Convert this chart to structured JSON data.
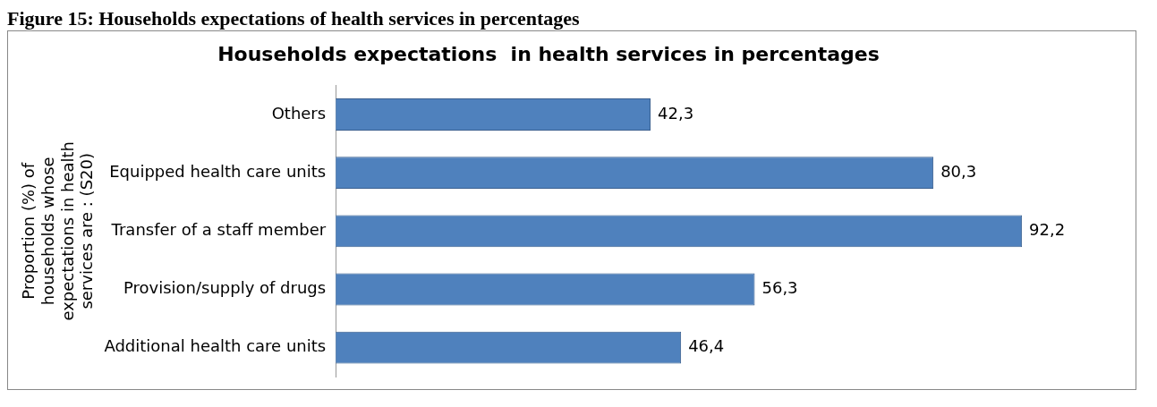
{
  "chart_data": {
    "type": "bar",
    "orientation": "horizontal",
    "title": "Households expectations  in health services in percentages",
    "ylabel": "Proportion (%) of households whose expectations in health services are : (S20)",
    "annotations": [
      "Figure 15: Households expectations of health services in percentages"
    ],
    "categories": [
      "Others",
      "Equipped health care units",
      "Transfer of a staff member",
      "Provision/supply of drugs",
      "Additional health care units"
    ],
    "values": [
      42.3,
      80.3,
      92.2,
      56.3,
      46.4
    ],
    "value_labels": [
      "42,3",
      "80,3",
      "92,2",
      "56,3",
      "46,4"
    ],
    "color": "#4f81bd"
  }
}
